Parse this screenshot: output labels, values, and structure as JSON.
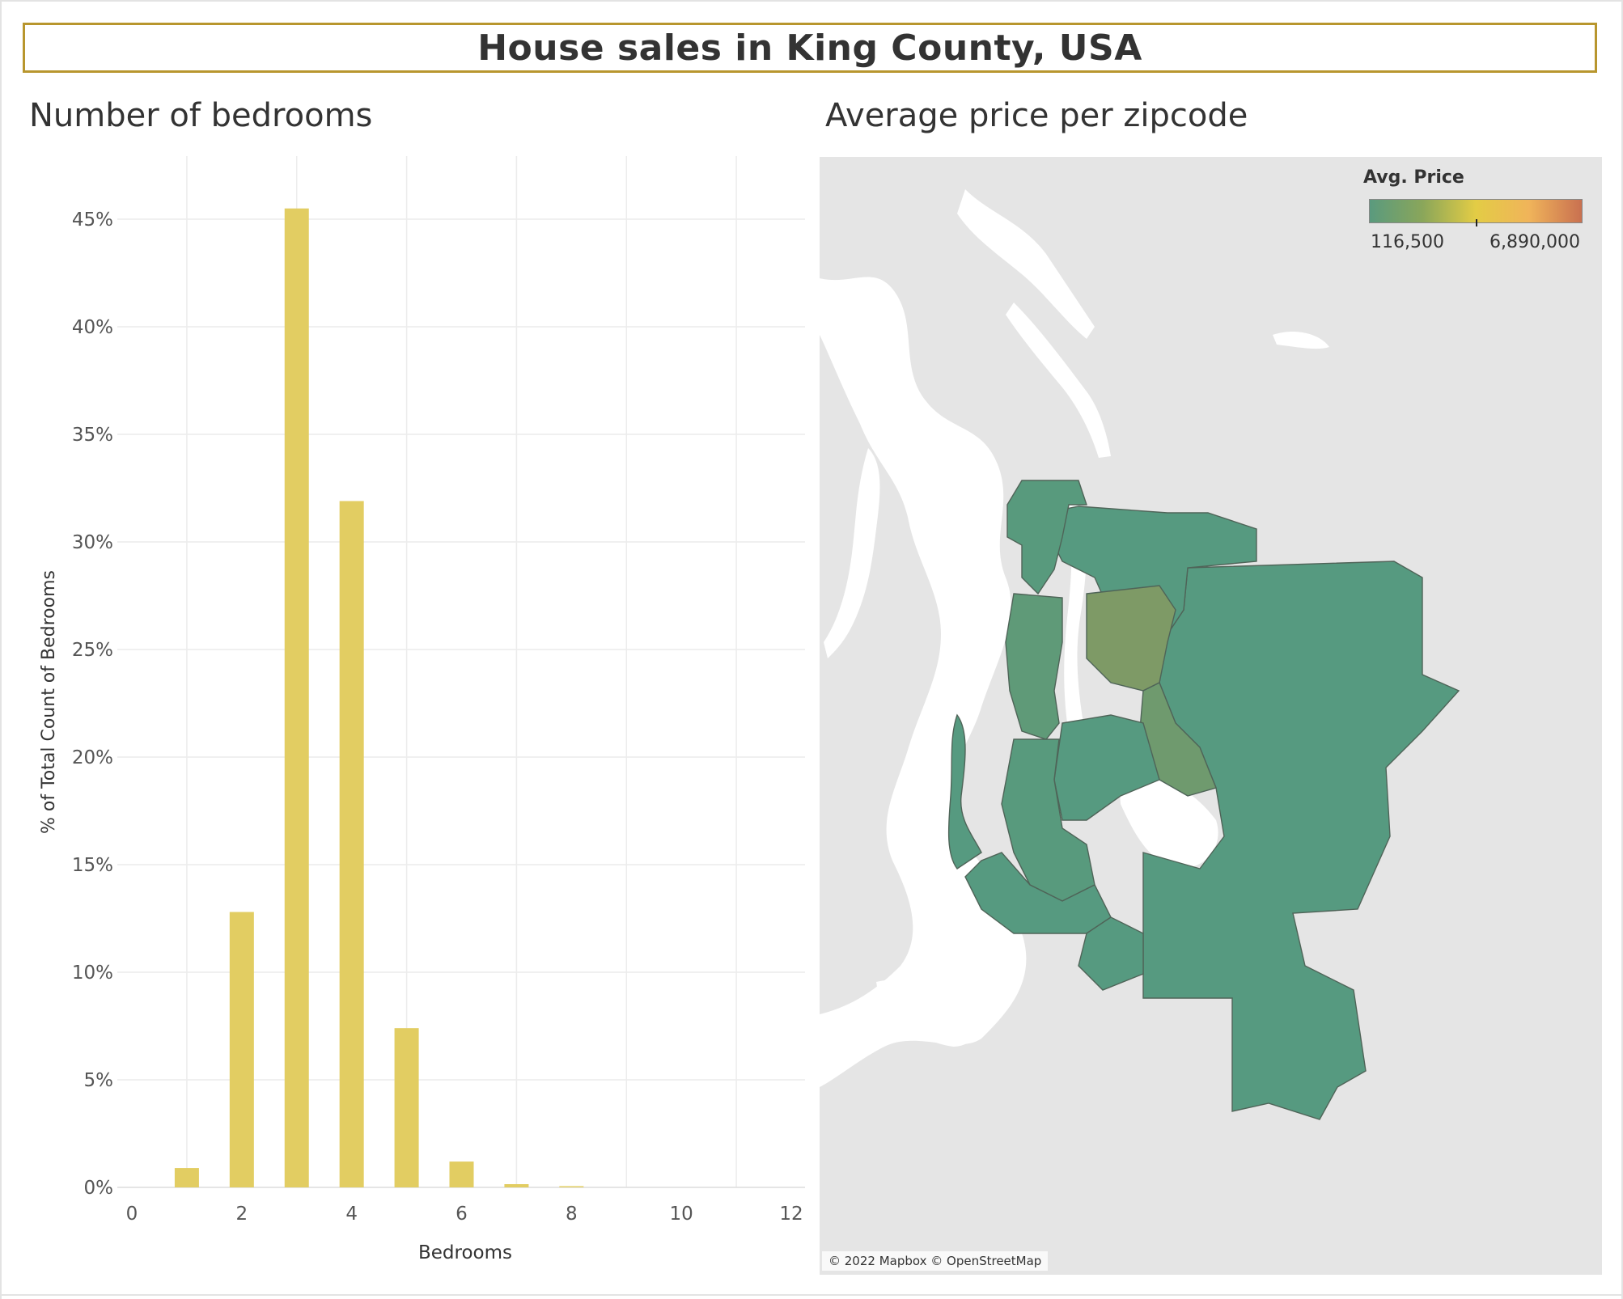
{
  "dashboard_title": "House sales in King County, USA",
  "left_panel": {
    "title": "Number of bedrooms"
  },
  "right_panel": {
    "title": "Average price per zipcode",
    "legend": {
      "title": "Avg. Price",
      "min_label": "116,500",
      "max_label": "6,890,000",
      "colors": [
        "#5a9a7e",
        "#8aa65a",
        "#e3cc45",
        "#f0b45a",
        "#c97050"
      ]
    },
    "attribution": "© 2022 Mapbox © OpenStreetMap"
  },
  "chart_data": {
    "type": "bar",
    "title": "Number of bedrooms",
    "xlabel": "Bedrooms",
    "ylabel": "% of Total Count of Bedrooms",
    "x": [
      1,
      2,
      3,
      4,
      5,
      6,
      7,
      8
    ],
    "values": [
      0.9,
      12.8,
      45.5,
      31.9,
      7.4,
      1.2,
      0.15,
      0.05
    ],
    "value_unit": "%",
    "xlim": [
      0,
      12
    ],
    "ylim": [
      0,
      48
    ],
    "x_ticks": [
      "0",
      "2",
      "4",
      "6",
      "8",
      "10",
      "12"
    ],
    "y_ticks": [
      "0%",
      "5%",
      "10%",
      "15%",
      "20%",
      "25%",
      "30%",
      "35%",
      "40%",
      "45%"
    ],
    "bar_color": "#e2cd62",
    "grid": true
  }
}
